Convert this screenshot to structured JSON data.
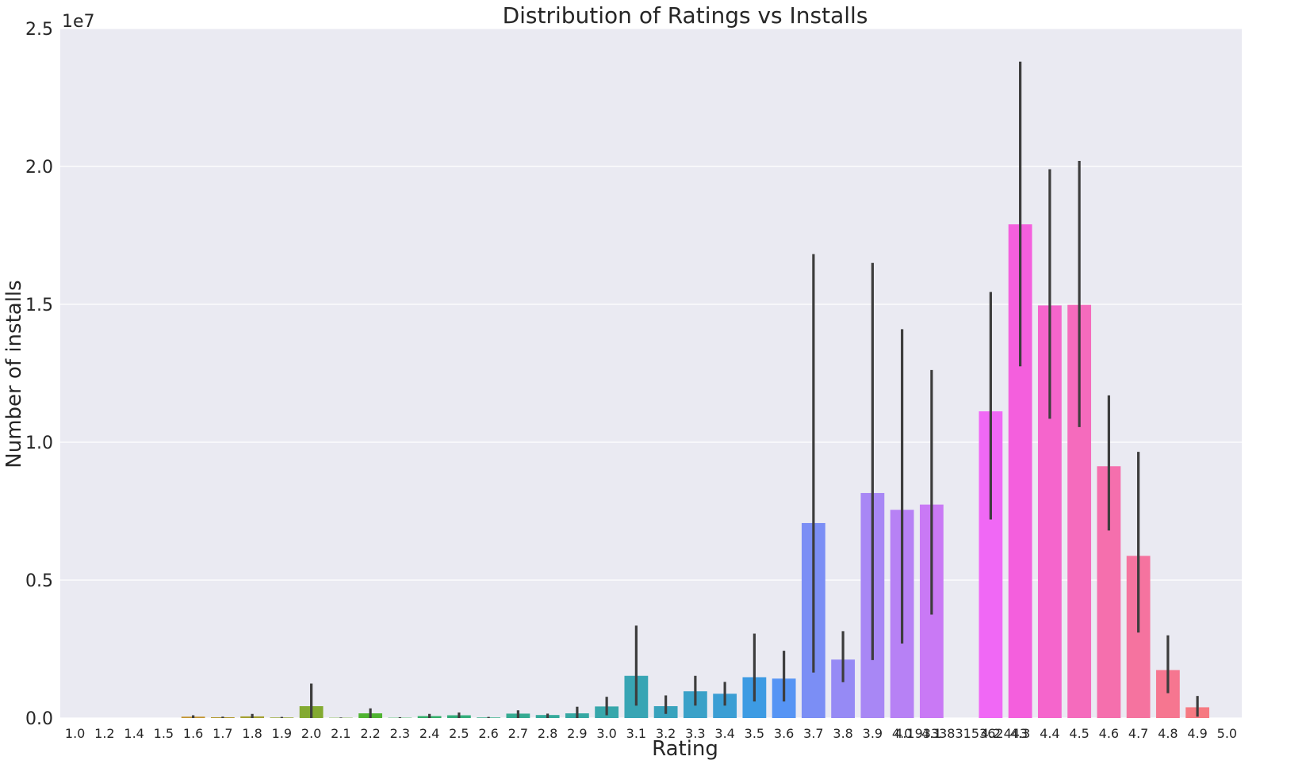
{
  "chart_data": {
    "type": "bar",
    "title": "Distribution of Ratings vs Installs",
    "xlabel": "Rating",
    "ylabel": "Number of installs",
    "y_offset_label": "1e7",
    "y_scale": 10000000,
    "ylim": [
      0,
      25000000
    ],
    "y_ticks": [
      "0.0",
      "0.5",
      "1.0",
      "1.5",
      "2.0",
      "2.5"
    ],
    "grid": true,
    "background": "#eaeaf2",
    "categories": [
      "1.0",
      "1.2",
      "1.4",
      "1.5",
      "1.6",
      "1.7",
      "1.8",
      "1.9",
      "2.0",
      "2.1",
      "2.2",
      "2.3",
      "2.4",
      "2.5",
      "2.6",
      "2.7",
      "2.8",
      "2.9",
      "3.0",
      "3.1",
      "3.2",
      "3.3",
      "3.4",
      "3.5",
      "3.6",
      "3.7",
      "3.8",
      "3.9",
      "4.0",
      "4.1",
      "4.193338315362443",
      "4.2",
      "4.3",
      "4.4",
      "4.5",
      "4.6",
      "4.7",
      "4.8",
      "4.9",
      "5.0"
    ],
    "values": [
      0,
      0,
      0,
      0,
      50000,
      30000,
      60000,
      20000,
      430000,
      10000,
      170000,
      10000,
      70000,
      100000,
      20000,
      160000,
      110000,
      170000,
      420000,
      1530000,
      430000,
      970000,
      880000,
      1480000,
      1430000,
      7070000,
      2120000,
      8160000,
      7550000,
      7740000,
      0,
      11120000,
      17900000,
      14960000,
      14980000,
      9130000,
      5880000,
      1740000,
      390000,
      0
    ],
    "error_low": [
      0,
      0,
      0,
      0,
      0,
      0,
      0,
      0,
      0,
      0,
      0,
      0,
      0,
      0,
      0,
      0,
      0,
      0,
      100000,
      450000,
      150000,
      450000,
      450000,
      600000,
      600000,
      1650000,
      1300000,
      2100000,
      2700000,
      3750000,
      0,
      7200000,
      12750000,
      10850000,
      10550000,
      6800000,
      3100000,
      900000,
      50000,
      0
    ],
    "error_high": [
      0,
      0,
      0,
      0,
      100000,
      50000,
      150000,
      40000,
      1250000,
      20000,
      350000,
      30000,
      150000,
      200000,
      40000,
      280000,
      160000,
      410000,
      770000,
      3350000,
      820000,
      1530000,
      1310000,
      3060000,
      2440000,
      16820000,
      3150000,
      16500000,
      14100000,
      12620000,
      0,
      15450000,
      23800000,
      19900000,
      20200000,
      11700000,
      9650000,
      3000000,
      800000,
      0
    ],
    "colors": [
      "#f77189",
      "#f7754f",
      "#e88131",
      "#d58c32",
      "#c39532",
      "#b39b32",
      "#a4a031",
      "#94a531",
      "#83aa31",
      "#70ae31",
      "#4fb331",
      "#32b151",
      "#33af6a",
      "#34ae7b",
      "#34ad87",
      "#35ab92",
      "#35aa9b",
      "#36a8a3",
      "#37a7ab",
      "#38a5b4",
      "#39a3bd",
      "#3aa1c8",
      "#3b9ed4",
      "#3d9be3",
      "#5694f4",
      "#7b8ef5",
      "#968af5",
      "#a887f5",
      "#b781f5",
      "#c979f5",
      "#dc71f5",
      "#f068f5",
      "#f45fdd",
      "#f565cc",
      "#f56bbd",
      "#f56fad",
      "#f5739f",
      "#f67690",
      "#f67981",
      "#f77189"
    ]
  }
}
